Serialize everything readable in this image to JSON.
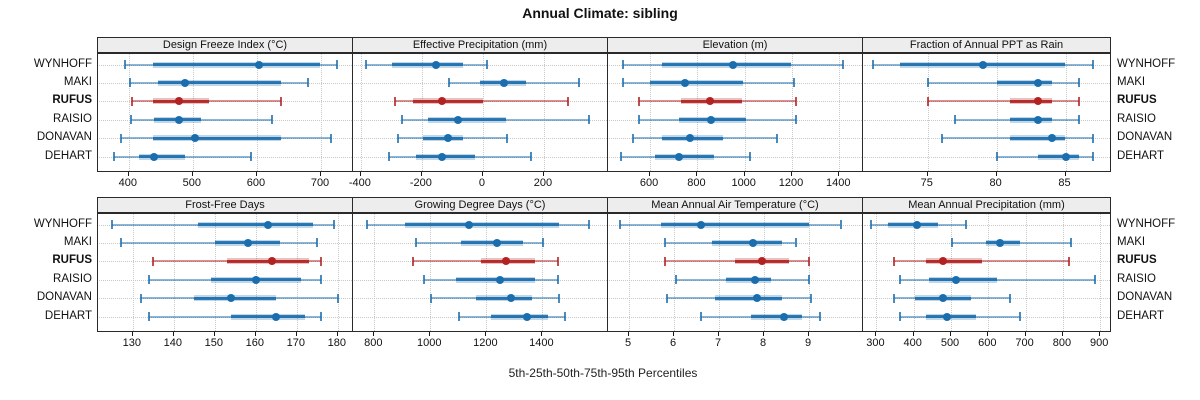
{
  "title": "Annual Climate: sibling",
  "caption": "5th-25th-50th-75th-95th Percentiles",
  "sites": [
    "WYNHOFF",
    "MAKI",
    "RUFUS",
    "RAISIO",
    "DONAVAN",
    "DEHART"
  ],
  "highlight_site": "RUFUS",
  "colors": {
    "series_blue": "#1b6eae",
    "series_red": "#b22222",
    "strip_bg": "#ededed",
    "panel_border": "#2a2a2a",
    "gridline": "#c9c9c9",
    "text": "#111111"
  },
  "chart_data": {
    "type": "percentile-interval-dotplot",
    "percentile_order": [
      "p5",
      "p25",
      "p50",
      "p75",
      "p95"
    ],
    "legend": "none",
    "grid": "dotted",
    "layout": "2 rows x 4 columns, free x scales, site labels on left and right",
    "panels": [
      {
        "title": "Design Freeze Index (°C)",
        "row": 0,
        "col": 0,
        "xlim": [
          352,
          750
        ],
        "tick_values": [
          400,
          500,
          600,
          700
        ],
        "tick_labels": [
          "400",
          "500",
          "600",
          "700"
        ],
        "series": [
          {
            "site": "WYNHOFF",
            "percentiles": [
              394,
              438,
              603,
              698,
              725
            ]
          },
          {
            "site": "MAKI",
            "percentiles": [
              402,
              445,
              487,
              637,
              680
            ]
          },
          {
            "site": "RUFUS",
            "percentiles": [
              405,
              437,
              478,
              525,
              637
            ]
          },
          {
            "site": "RAISIO",
            "percentiles": [
              404,
              439,
              479,
              513,
              624
            ]
          },
          {
            "site": "DONAVAN",
            "percentiles": [
              388,
              437,
              503,
              638,
              716
            ]
          },
          {
            "site": "DEHART",
            "percentiles": [
              377,
              416,
              440,
              488,
              591
            ]
          }
        ]
      },
      {
        "title": "Effective Precipitation (mm)",
        "row": 0,
        "col": 1,
        "xlim": [
          -426,
          410
        ],
        "tick_values": [
          -400,
          -200,
          0,
          200
        ],
        "tick_labels": [
          "-400",
          "-200",
          "0",
          "200"
        ],
        "series": [
          {
            "site": "WYNHOFF",
            "percentiles": [
              -383,
              -297,
              -153,
              -66,
              13
            ]
          },
          {
            "site": "MAKI",
            "percentiles": [
              -112,
              -11,
              69,
              142,
              314
            ]
          },
          {
            "site": "RUFUS",
            "percentiles": [
              -287,
              -230,
              -133,
              0,
              279
            ]
          },
          {
            "site": "RAISIO",
            "percentiles": [
              -265,
              -180,
              -82,
              74,
              348
            ]
          },
          {
            "site": "DONAVAN",
            "percentiles": [
              -279,
              -197,
              -115,
              -66,
              80
            ]
          },
          {
            "site": "DEHART",
            "percentiles": [
              -308,
              -219,
              -134,
              -27,
              156
            ]
          }
        ]
      },
      {
        "title": "Elevation (m)",
        "row": 0,
        "col": 2,
        "xlim": [
          422,
          1500
        ],
        "tick_values": [
          600,
          800,
          1000,
          1200,
          1400
        ],
        "tick_labels": [
          "600",
          "800",
          "1000",
          "1200",
          "1400"
        ],
        "series": [
          {
            "site": "WYNHOFF",
            "percentiles": [
              486,
              650,
              950,
              1197,
              1415
            ]
          },
          {
            "site": "MAKI",
            "percentiles": [
              486,
              599,
              747,
              993,
              1208
            ]
          },
          {
            "site": "RUFUS",
            "percentiles": [
              552,
              730,
              852,
              990,
              1218
            ]
          },
          {
            "site": "RAISIO",
            "percentiles": [
              552,
              723,
              859,
              1004,
              1216
            ]
          },
          {
            "site": "DONAVAN",
            "percentiles": [
              528,
              648,
              768,
              908,
              1138
            ]
          },
          {
            "site": "DEHART",
            "percentiles": [
              475,
              620,
              723,
              870,
              1021
            ]
          }
        ]
      },
      {
        "title": "Fraction of Annual PPT as Rain",
        "row": 0,
        "col": 3,
        "xlim": [
          70.3,
          88.3
        ],
        "tick_values": [
          75,
          80,
          85
        ],
        "tick_labels": [
          "75",
          "80",
          "85"
        ],
        "series": [
          {
            "site": "WYNHOFF",
            "percentiles": [
              71,
              73,
              79,
              85,
              87
            ]
          },
          {
            "site": "MAKI",
            "percentiles": [
              75,
              80,
              83,
              84,
              86
            ]
          },
          {
            "site": "RUFUS",
            "percentiles": [
              75,
              81,
              83,
              84,
              86
            ]
          },
          {
            "site": "RAISIO",
            "percentiles": [
              77,
              81,
              83,
              84,
              86
            ]
          },
          {
            "site": "DONAVAN",
            "percentiles": [
              76,
              81,
              84,
              85,
              87
            ]
          },
          {
            "site": "DEHART",
            "percentiles": [
              80,
              83,
              85,
              86,
              87
            ]
          }
        ]
      },
      {
        "title": "Frost-Free Days",
        "row": 1,
        "col": 0,
        "xlim": [
          121.5,
          183.7
        ],
        "tick_values": [
          130,
          140,
          150,
          160,
          170,
          180
        ],
        "tick_labels": [
          "130",
          "140",
          "150",
          "160",
          "170",
          "180"
        ],
        "series": [
          {
            "site": "WYNHOFF",
            "percentiles": [
              125,
              146,
              163,
              174,
              179
            ]
          },
          {
            "site": "MAKI",
            "percentiles": [
              127,
              150,
              158,
              166,
              175
            ]
          },
          {
            "site": "RUFUS",
            "percentiles": [
              135,
              153,
              164,
              173,
              176
            ]
          },
          {
            "site": "RAISIO",
            "percentiles": [
              134,
              149,
              160,
              171,
              176
            ]
          },
          {
            "site": "DONAVAN",
            "percentiles": [
              132,
              145,
              154,
              165,
              180
            ]
          },
          {
            "site": "DEHART",
            "percentiles": [
              134,
              154,
              165,
              172,
              176
            ]
          }
        ]
      },
      {
        "title": "Growing Degree Days (°C)",
        "row": 1,
        "col": 1,
        "xlim": [
          724,
          1634
        ],
        "tick_values": [
          800,
          1000,
          1200,
          1400
        ],
        "tick_labels": [
          "800",
          "1000",
          "1200",
          "1400"
        ],
        "series": [
          {
            "site": "WYNHOFF",
            "percentiles": [
              775,
              910,
              1137,
              1460,
              1565
            ]
          },
          {
            "site": "MAKI",
            "percentiles": [
              950,
              1111,
              1239,
              1331,
              1402
            ]
          },
          {
            "site": "RUFUS",
            "percentiles": [
              938,
              1180,
              1270,
              1372,
              1455
            ]
          },
          {
            "site": "RAISIO",
            "percentiles": [
              977,
              1093,
              1248,
              1372,
              1455
            ]
          },
          {
            "site": "DONAVAN",
            "percentiles": [
              1001,
              1162,
              1289,
              1363,
              1460
            ]
          },
          {
            "site": "DEHART",
            "percentiles": [
              1102,
              1218,
              1343,
              1420,
              1482
            ]
          }
        ]
      },
      {
        "title": "Mean Annual Air Temperature (°C)",
        "row": 1,
        "col": 2,
        "xlim": [
          4.53,
          10.2
        ],
        "tick_values": [
          5,
          6,
          7,
          8,
          9
        ],
        "tick_labels": [
          "5",
          "6",
          "7",
          "8",
          "9"
        ],
        "series": [
          {
            "site": "WYNHOFF",
            "percentiles": [
              4.8,
              5.7,
              6.6,
              9.0,
              9.7
            ]
          },
          {
            "site": "MAKI",
            "percentiles": [
              5.8,
              6.85,
              7.75,
              8.4,
              8.7
            ]
          },
          {
            "site": "RUFUS",
            "percentiles": [
              5.8,
              7.35,
              7.95,
              8.55,
              9.0
            ]
          },
          {
            "site": "RAISIO",
            "percentiles": [
              6.05,
              7.15,
              7.8,
              8.15,
              9.0
            ]
          },
          {
            "site": "DONAVAN",
            "percentiles": [
              5.85,
              6.9,
              7.85,
              8.4,
              9.05
            ]
          },
          {
            "site": "DEHART",
            "percentiles": [
              6.6,
              7.7,
              8.45,
              8.85,
              9.25
            ]
          }
        ]
      },
      {
        "title": "Mean Annual Precipitation (mm)",
        "row": 1,
        "col": 3,
        "xlim": [
          264,
          929
        ],
        "tick_values": [
          300,
          400,
          500,
          600,
          700,
          800,
          900
        ],
        "tick_labels": [
          "300",
          "400",
          "500",
          "600",
          "700",
          "800",
          "900"
        ],
        "series": [
          {
            "site": "WYNHOFF",
            "percentiles": [
              285,
              330,
              410,
              465,
              540
            ]
          },
          {
            "site": "MAKI",
            "percentiles": [
              503,
              595,
              632,
              684,
              822
            ]
          },
          {
            "site": "RUFUS",
            "percentiles": [
              348,
              432,
              478,
              584,
              817
            ]
          },
          {
            "site": "RAISIO",
            "percentiles": [
              364,
              442,
              513,
              623,
              885
            ]
          },
          {
            "site": "DONAVAN",
            "percentiles": [
              348,
              404,
              478,
              554,
              659
            ]
          },
          {
            "site": "DEHART",
            "percentiles": [
              364,
              432,
              489,
              568,
              685
            ]
          }
        ]
      }
    ]
  }
}
